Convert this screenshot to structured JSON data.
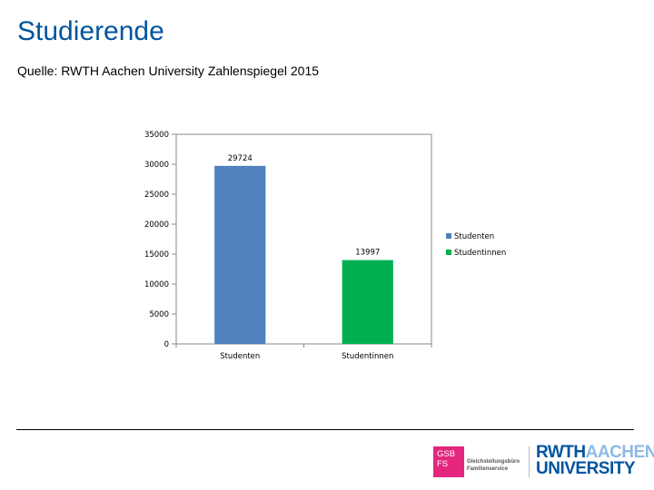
{
  "page": {
    "title": "Studierende",
    "source": "Quelle: RWTH Aachen University Zahlenspiegel 2015"
  },
  "chart_data": {
    "type": "bar",
    "categories": [
      "Studenten",
      "Studentinnen"
    ],
    "values": [
      29724,
      13997
    ],
    "data_labels": [
      "29724",
      "13997"
    ],
    "colors": [
      "#4f81bd",
      "#00b050"
    ],
    "ylim": [
      0,
      35000
    ],
    "yticks": [
      0,
      5000,
      10000,
      15000,
      20000,
      25000,
      30000,
      35000
    ],
    "ytick_labels": [
      "0",
      "5000",
      "10000",
      "15000",
      "20000",
      "25000",
      "30000",
      "35000"
    ],
    "legend": [
      "Studenten",
      "Studentinnen"
    ],
    "legend_position": "right",
    "title": "",
    "xlabel": "",
    "ylabel": ""
  },
  "footer": {
    "gsb_logo": "GSB FS",
    "gsb_text_1": "Gleichstellungsbüro",
    "gsb_text_2": "Familienservice",
    "logo_rwth": "RWTH",
    "logo_aachen": "AACHEN",
    "logo_university": "UNIVERSITY"
  }
}
